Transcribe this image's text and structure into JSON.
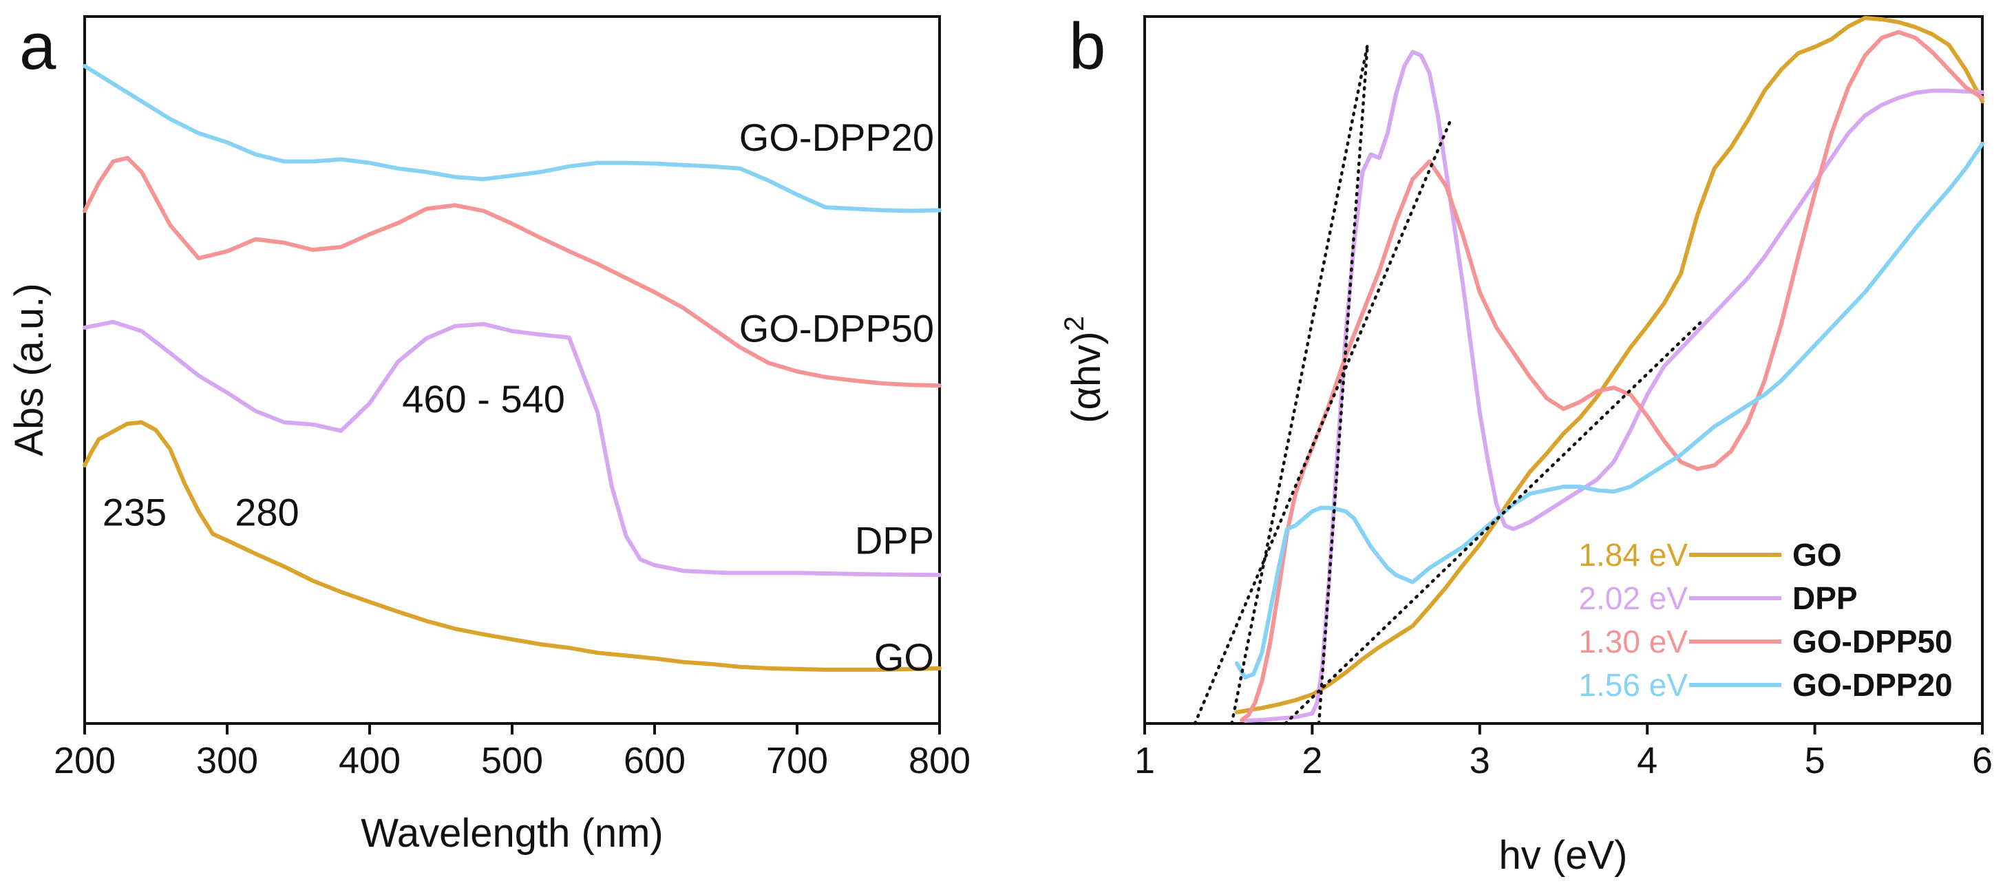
{
  "colors": {
    "GO": "#d9a32c",
    "DPP": "#d7a8f2",
    "GO-DPP50": "#f59494",
    "GO-DPP20": "#86d2f5"
  },
  "chart_data": [
    {
      "panel": "a",
      "type": "line",
      "xlabel": "Wavelength (nm)",
      "ylabel": "Abs (a.u.)",
      "xlim": [
        200,
        800
      ],
      "ylim": [
        0,
        100
      ],
      "xticks": [
        200,
        300,
        400,
        500,
        600,
        700,
        800
      ],
      "series": [
        {
          "name": "GO-DPP20",
          "x": [
            200,
            220,
            240,
            260,
            280,
            300,
            320,
            340,
            360,
            380,
            400,
            420,
            440,
            460,
            480,
            500,
            520,
            540,
            560,
            580,
            600,
            620,
            640,
            660,
            680,
            700,
            720,
            740,
            760,
            780,
            800
          ],
          "y": [
            93,
            90.5,
            88,
            85.5,
            83.5,
            82.2,
            80.5,
            79.5,
            79.5,
            79.8,
            79.3,
            78.5,
            78,
            77.3,
            77,
            77.5,
            78,
            78.8,
            79.3,
            79.3,
            79.2,
            79,
            78.8,
            78.5,
            76.8,
            74.8,
            73,
            72.8,
            72.6,
            72.5,
            72.6
          ]
        },
        {
          "name": "GO-DPP50",
          "x": [
            200,
            210,
            220,
            230,
            240,
            260,
            280,
            300,
            320,
            340,
            360,
            380,
            400,
            420,
            440,
            460,
            480,
            500,
            520,
            540,
            560,
            580,
            600,
            620,
            640,
            660,
            680,
            700,
            720,
            740,
            760,
            780,
            800
          ],
          "y": [
            72.5,
            76.5,
            79.5,
            80,
            78,
            70.5,
            65.8,
            66.8,
            68.5,
            68,
            67,
            67.4,
            69.2,
            70.8,
            72.8,
            73.3,
            72.5,
            70.7,
            68.7,
            66.8,
            65,
            63,
            61,
            58.8,
            56,
            53.2,
            51,
            49.8,
            49,
            48.5,
            48.1,
            47.9,
            47.8
          ]
        },
        {
          "name": "DPP",
          "x": [
            200,
            220,
            240,
            260,
            280,
            300,
            320,
            340,
            360,
            380,
            400,
            420,
            440,
            460,
            480,
            500,
            520,
            540,
            560,
            570,
            580,
            590,
            600,
            620,
            650,
            700,
            750,
            800
          ],
          "y": [
            56,
            56.8,
            55.5,
            52.4,
            49.2,
            46.8,
            44.2,
            42.6,
            42.3,
            41.4,
            45.3,
            51.2,
            54.5,
            56.2,
            56.5,
            55.5,
            55,
            54.6,
            44,
            33.5,
            26.5,
            23.2,
            22.4,
            21.6,
            21.3,
            21.3,
            21.1,
            21
          ],
          "labels": [
            {
              "text": "460 - 540",
              "x": 480,
              "y": 44
            }
          ]
        },
        {
          "name": "GO",
          "x": [
            200,
            205,
            210,
            220,
            230,
            240,
            250,
            260,
            270,
            280,
            290,
            300,
            320,
            340,
            360,
            380,
            400,
            420,
            440,
            460,
            480,
            500,
            520,
            540,
            560,
            580,
            600,
            620,
            640,
            660,
            680,
            700,
            720,
            740,
            760,
            780,
            800
          ],
          "y": [
            36.5,
            38.5,
            40.2,
            41.3,
            42.4,
            42.6,
            41.5,
            38.8,
            34,
            30,
            26.8,
            25.9,
            24,
            22.2,
            20.2,
            18.6,
            17.2,
            15.8,
            14.5,
            13.4,
            12.6,
            11.9,
            11.2,
            10.7,
            10,
            9.6,
            9.2,
            8.7,
            8.4,
            8,
            7.8,
            7.7,
            7.6,
            7.6,
            7.6,
            7.7,
            7.8
          ],
          "labels": [
            {
              "text": "235",
              "x": 235,
              "y": 28
            },
            {
              "text": "280",
              "x": 328,
              "y": 28
            }
          ]
        }
      ],
      "series_labels": [
        {
          "text": "GO-DPP20",
          "x": 800,
          "y": 81
        },
        {
          "text": "GO-DPP50",
          "x": 800,
          "y": 54
        },
        {
          "text": "DPP",
          "x": 800,
          "y": 24
        },
        {
          "text": "GO",
          "x": 800,
          "y": 7.5
        }
      ]
    },
    {
      "panel": "b",
      "type": "line",
      "xlabel": "hv (eV)",
      "ylabel": "(αhv)",
      "ylabel_superscript": "2",
      "xlim": [
        1,
        6
      ],
      "ylim": [
        0,
        100
      ],
      "xticks": [
        1,
        2,
        3,
        4,
        5,
        6
      ],
      "series": [
        {
          "name": "GO",
          "bandgap": "1.84 eV",
          "x": [
            1.55,
            1.6,
            1.7,
            1.8,
            1.9,
            2.0,
            2.1,
            2.2,
            2.3,
            2.4,
            2.5,
            2.6,
            2.7,
            2.8,
            2.9,
            3.0,
            3.1,
            3.2,
            3.3,
            3.4,
            3.5,
            3.6,
            3.7,
            3.8,
            3.9,
            4.0,
            4.1,
            4.2,
            4.3,
            4.4,
            4.5,
            4.6,
            4.7,
            4.8,
            4.9,
            5.0,
            5.1,
            5.2,
            5.3,
            5.4,
            5.5,
            5.6,
            5.7,
            5.8,
            5.9,
            6.0
          ],
          "y": [
            1.6,
            1.8,
            2.2,
            2.7,
            3.3,
            4.1,
            5.5,
            7.2,
            9.1,
            10.8,
            12.3,
            13.8,
            16.5,
            19.3,
            22.4,
            25.3,
            28.7,
            32.3,
            35.6,
            38.2,
            41,
            43.3,
            46.2,
            49.7,
            53.2,
            56.2,
            59.4,
            63.6,
            72,
            78.5,
            81.5,
            85.3,
            89.5,
            92.5,
            94.8,
            95.7,
            96.8,
            98.6,
            99.8,
            99.6,
            99.2,
            98.5,
            97.5,
            96,
            92.5,
            88
          ]
        },
        {
          "name": "DPP",
          "bandgap": "2.02 eV",
          "x": [
            1.6,
            1.7,
            1.8,
            1.9,
            2.0,
            2.03,
            2.06,
            2.1,
            2.15,
            2.2,
            2.25,
            2.3,
            2.35,
            2.4,
            2.45,
            2.5,
            2.55,
            2.6,
            2.65,
            2.7,
            2.75,
            2.8,
            2.85,
            2.9,
            2.95,
            3.0,
            3.05,
            3.1,
            3.15,
            3.2,
            3.3,
            3.4,
            3.5,
            3.6,
            3.7,
            3.8,
            3.9,
            4.0,
            4.1,
            4.2,
            4.3,
            4.4,
            4.5,
            4.6,
            4.7,
            4.8,
            4.9,
            5.0,
            5.1,
            5.2,
            5.3,
            5.4,
            5.5,
            5.6,
            5.7,
            5.8,
            5.9,
            6.0
          ],
          "y": [
            0.4,
            0.5,
            0.7,
            0.9,
            1.4,
            3,
            8,
            20,
            38,
            55,
            68,
            78,
            80.5,
            80,
            83.5,
            89,
            93,
            95,
            94.5,
            92,
            86,
            78,
            70,
            62,
            53,
            44,
            37,
            31,
            28,
            27.5,
            28.5,
            30,
            31.5,
            33,
            34.5,
            37,
            41.5,
            46.5,
            50.5,
            53,
            55.5,
            58,
            60.5,
            63,
            66,
            69.5,
            73,
            76.5,
            80,
            83.5,
            86,
            87.5,
            88.5,
            89.2,
            89.5,
            89.5,
            89.4,
            89.3
          ]
        },
        {
          "name": "GO-DPP50",
          "bandgap": "1.30 eV",
          "x": [
            1.58,
            1.62,
            1.66,
            1.7,
            1.75,
            1.8,
            1.85,
            1.9,
            1.95,
            2.0,
            2.1,
            2.2,
            2.3,
            2.4,
            2.5,
            2.6,
            2.7,
            2.8,
            2.9,
            3.0,
            3.1,
            3.2,
            3.3,
            3.4,
            3.5,
            3.6,
            3.7,
            3.8,
            3.9,
            4.0,
            4.1,
            4.2,
            4.3,
            4.4,
            4.5,
            4.6,
            4.7,
            4.8,
            4.9,
            5.0,
            5.1,
            5.2,
            5.3,
            5.4,
            5.5,
            5.6,
            5.7,
            5.8,
            5.9,
            6.0
          ],
          "y": [
            0.5,
            1.2,
            3,
            6,
            11.5,
            19,
            27,
            32.5,
            36,
            39,
            45,
            52,
            58,
            64,
            71,
            77,
            79.5,
            76,
            69,
            61,
            56,
            52.5,
            49,
            46,
            44.5,
            45.5,
            47,
            47.5,
            46.5,
            43.5,
            40,
            37,
            36,
            36.5,
            38.5,
            42.5,
            48.5,
            56.5,
            66,
            75,
            83.5,
            90,
            94.5,
            97,
            97.8,
            97,
            95,
            92.5,
            90,
            88.5
          ]
        },
        {
          "name": "GO-DPP20",
          "bandgap": "1.56 eV",
          "x": [
            1.55,
            1.6,
            1.65,
            1.7,
            1.75,
            1.8,
            1.85,
            1.9,
            1.95,
            2.0,
            2.05,
            2.1,
            2.15,
            2.2,
            2.25,
            2.3,
            2.35,
            2.4,
            2.45,
            2.5,
            2.6,
            2.7,
            2.8,
            2.9,
            3.0,
            3.1,
            3.2,
            3.3,
            3.4,
            3.5,
            3.6,
            3.7,
            3.8,
            3.9,
            4.0,
            4.1,
            4.2,
            4.3,
            4.4,
            4.5,
            4.6,
            4.7,
            4.8,
            4.9,
            5.0,
            5.1,
            5.2,
            5.3,
            5.4,
            5.5,
            5.6,
            5.7,
            5.8,
            5.9,
            6.0
          ],
          "y": [
            8.5,
            6.5,
            7,
            10,
            16,
            22,
            27.5,
            28,
            29,
            30,
            30.5,
            30.5,
            30.3,
            30,
            29,
            27,
            25,
            23.5,
            22,
            21,
            20,
            22,
            23.5,
            25,
            27,
            29,
            31,
            32.5,
            33,
            33.5,
            33.5,
            33,
            32.8,
            33.5,
            35,
            36.5,
            38,
            40,
            42,
            43.5,
            45,
            46.5,
            48.5,
            51,
            53.5,
            56,
            58.5,
            61,
            64,
            67,
            70,
            72.8,
            75.5,
            78.5,
            82
          ]
        }
      ],
      "fit_lines": [
        {
          "x": [
            1.3,
            2.82
          ],
          "y": [
            0,
            85
          ]
        },
        {
          "x": [
            1.52,
            2.33
          ],
          "y": [
            0,
            96
          ]
        },
        {
          "x": [
            2.04,
            2.33
          ],
          "y": [
            0,
            96
          ]
        },
        {
          "x": [
            1.84,
            4.33
          ],
          "y": [
            0,
            57
          ]
        }
      ],
      "legend": {
        "position": "bottom-right"
      }
    }
  ]
}
